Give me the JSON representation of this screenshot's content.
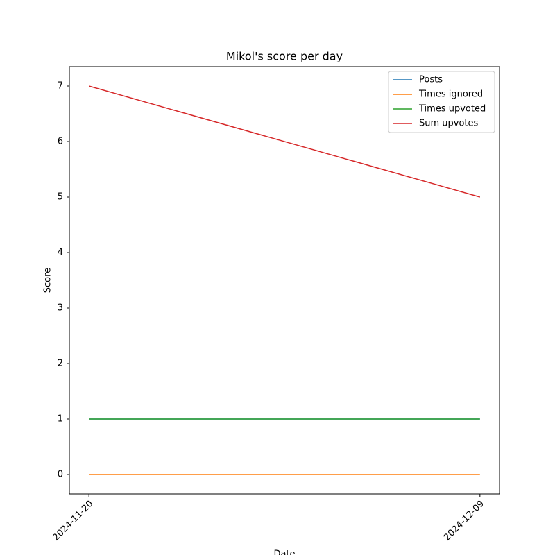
{
  "chart_data": {
    "type": "line",
    "title": "Mikol's score per day",
    "xlabel": "Date",
    "ylabel": "Score",
    "x": [
      "2024-11-20",
      "2024-12-09"
    ],
    "series": [
      {
        "name": "Posts",
        "color": "#1f77b4",
        "values": [
          1,
          1
        ]
      },
      {
        "name": "Times ignored",
        "color": "#ff7f0e",
        "values": [
          0,
          0
        ]
      },
      {
        "name": "Times upvoted",
        "color": "#2ca02c",
        "values": [
          1,
          1
        ]
      },
      {
        "name": "Sum upvotes",
        "color": "#d62728",
        "values": [
          7,
          5
        ]
      }
    ],
    "ylim": [
      -0.35,
      7.35
    ],
    "yticks": [
      0,
      1,
      2,
      3,
      4,
      5,
      6,
      7
    ],
    "xticks": [
      "2024-11-20",
      "2024-12-09"
    ],
    "legend": "upper right",
    "grid": false
  }
}
